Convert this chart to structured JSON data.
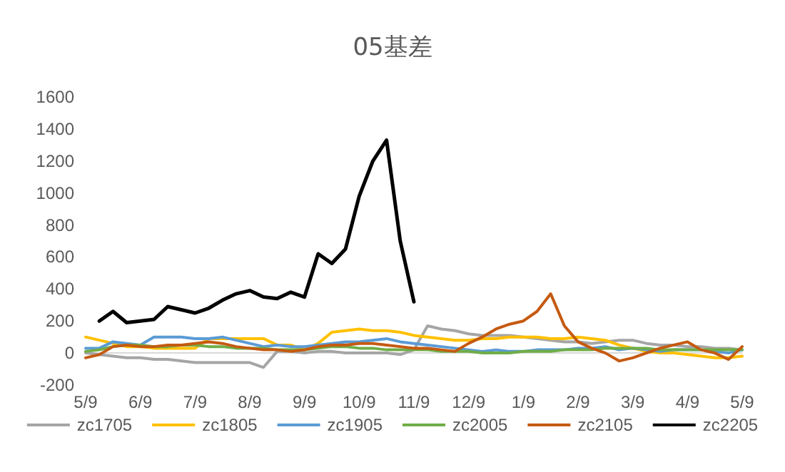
{
  "chart_data": {
    "type": "line",
    "title": "05基差",
    "categories": [
      "5/9",
      null,
      null,
      null,
      "6/9",
      null,
      null,
      null,
      "7/9",
      null,
      null,
      null,
      "8/9",
      null,
      null,
      null,
      "9/9",
      null,
      null,
      null,
      "10/9",
      null,
      null,
      null,
      "11/9",
      null,
      null,
      null,
      "12/9",
      null,
      null,
      null,
      "1/9",
      null,
      null,
      null,
      "2/9",
      null,
      null,
      null,
      "3/9",
      null,
      null,
      null,
      "4/9",
      null,
      null,
      null,
      "5/9"
    ],
    "series": [
      {
        "name": "zc1705",
        "color": "#a5a5a5",
        "values": [
          0,
          -10,
          -20,
          -30,
          -30,
          -40,
          -40,
          -50,
          -60,
          -60,
          -60,
          -60,
          -60,
          -90,
          10,
          10,
          0,
          10,
          10,
          0,
          0,
          0,
          0,
          -10,
          20,
          170,
          150,
          140,
          120,
          110,
          110,
          110,
          100,
          90,
          80,
          70,
          70,
          60,
          70,
          80,
          80,
          60,
          50,
          50,
          40,
          40,
          30,
          30,
          20
        ]
      },
      {
        "name": "zc1805",
        "color": "#ffc000",
        "values": [
          100,
          80,
          60,
          40,
          40,
          30,
          30,
          30,
          30,
          90,
          90,
          90,
          90,
          90,
          50,
          50,
          20,
          60,
          130,
          140,
          150,
          140,
          140,
          130,
          110,
          100,
          90,
          80,
          80,
          90,
          90,
          100,
          100,
          100,
          90,
          90,
          100,
          90,
          80,
          50,
          30,
          10,
          0,
          0,
          -10,
          -20,
          -30,
          -30,
          -20
        ]
      },
      {
        "name": "zc1905",
        "color": "#5b9bd5",
        "values": [
          30,
          30,
          70,
          60,
          50,
          100,
          100,
          100,
          90,
          90,
          100,
          80,
          60,
          40,
          50,
          40,
          40,
          50,
          60,
          70,
          70,
          80,
          90,
          70,
          60,
          50,
          40,
          30,
          20,
          10,
          20,
          10,
          10,
          20,
          20,
          20,
          30,
          30,
          40,
          20,
          30,
          20,
          10,
          20,
          20,
          20,
          10,
          0,
          20
        ]
      },
      {
        "name": "zc2005",
        "color": "#70ad47",
        "values": [
          10,
          20,
          40,
          50,
          50,
          40,
          40,
          50,
          50,
          40,
          40,
          30,
          30,
          30,
          20,
          20,
          20,
          30,
          40,
          40,
          30,
          30,
          20,
          20,
          20,
          20,
          10,
          10,
          10,
          0,
          0,
          0,
          10,
          10,
          10,
          20,
          20,
          20,
          30,
          30,
          30,
          30,
          20,
          20,
          20,
          20,
          20,
          20,
          20
        ]
      },
      {
        "name": "zc2105",
        "color": "#c55a11",
        "values": [
          -30,
          -10,
          40,
          50,
          40,
          40,
          50,
          50,
          60,
          70,
          60,
          40,
          30,
          20,
          20,
          10,
          20,
          40,
          50,
          50,
          60,
          60,
          50,
          40,
          30,
          30,
          20,
          10,
          60,
          100,
          150,
          180,
          200,
          260,
          370,
          170,
          70,
          30,
          0,
          -50,
          -30,
          0,
          30,
          50,
          70,
          20,
          0,
          -40,
          40
        ]
      },
      {
        "name": "zc2205",
        "color": "#000000",
        "values": [
          null,
          200,
          260,
          190,
          200,
          210,
          290,
          270,
          250,
          280,
          330,
          370,
          390,
          350,
          340,
          380,
          350,
          620,
          560,
          650,
          980,
          1200,
          1330,
          700,
          320,
          null,
          null,
          null,
          null,
          null,
          null,
          null,
          null,
          null,
          null,
          null,
          null,
          null,
          null,
          null,
          null,
          null,
          null,
          null,
          null,
          null,
          null,
          null,
          null
        ]
      }
    ],
    "ylim": [
      -200,
      1600
    ],
    "yticks": [
      -200,
      0,
      200,
      400,
      600,
      800,
      1000,
      1200,
      1400,
      1600
    ],
    "grid": false,
    "legend": "bottom"
  }
}
